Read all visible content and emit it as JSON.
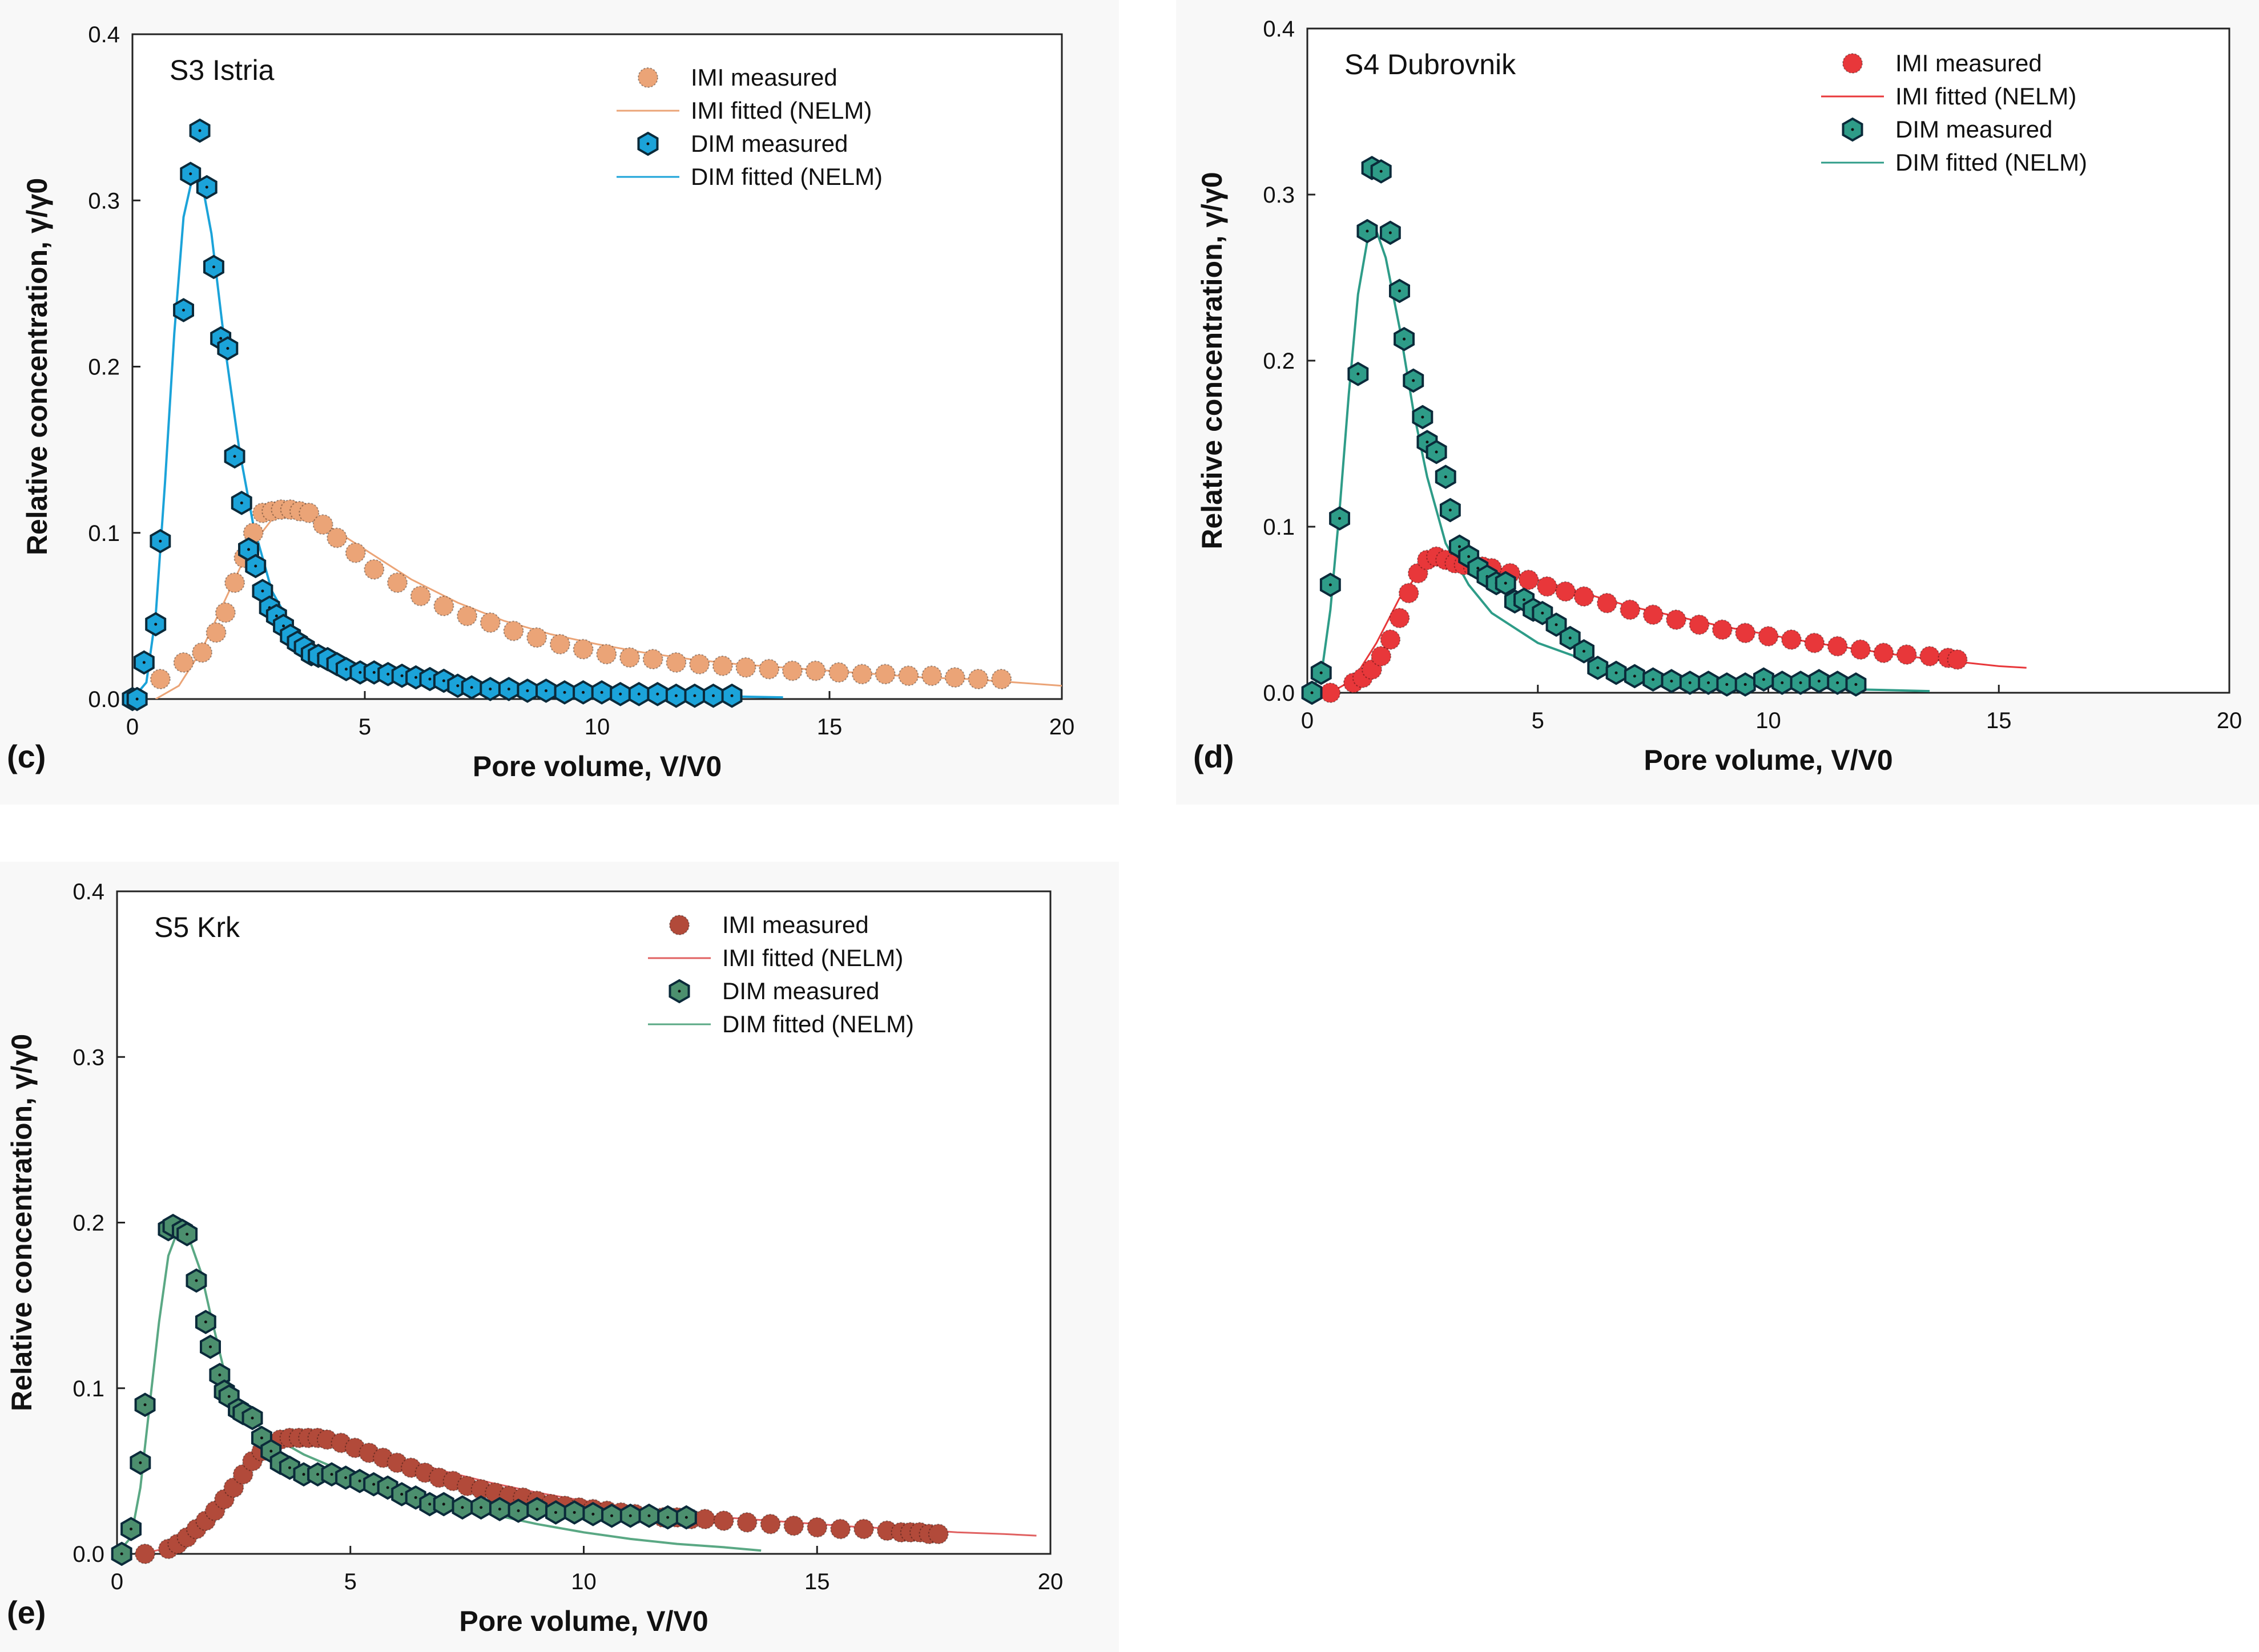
{
  "figure": {
    "colors": {
      "imi_c": "#EBA477",
      "dim_c": "#1BA3D9",
      "imi_d": "#E8373A",
      "dim_d": "#2E9C88",
      "imi_e": "#B24A3A",
      "dim_e": "#4C8F6E",
      "fit_imi_e": "#E06060",
      "fit_dim_e": "#5AA884"
    }
  },
  "chart_data": [
    {
      "id": "c",
      "type": "line",
      "panel_label": "(c)",
      "title": "S3 Istria",
      "xlabel": "Pore volume, V/V0",
      "ylabel": "Relative concentration, γ/γ0",
      "xlim": [
        0,
        20
      ],
      "ylim": [
        0,
        0.4
      ],
      "xticks": [
        0,
        5,
        10,
        15,
        20
      ],
      "yticks": [
        "0.0",
        "0.1",
        "0.2",
        "0.3",
        "0.4"
      ],
      "legend_position": "top-right",
      "legend": [
        "IMI measured",
        "IMI fitted (NELM)",
        "DIM measured",
        "DIM fitted (NELM)"
      ],
      "series": [
        {
          "name": "IMI measured",
          "kind": "scatter",
          "marker": "circle",
          "x": [
            0.6,
            1.1,
            1.5,
            1.8,
            2.0,
            2.2,
            2.4,
            2.6,
            2.8,
            3.0,
            3.2,
            3.4,
            3.6,
            3.8,
            4.1,
            4.4,
            4.8,
            5.2,
            5.7,
            6.2,
            6.7,
            7.2,
            7.7,
            8.2,
            8.7,
            9.2,
            9.7,
            10.2,
            10.7,
            11.2,
            11.7,
            12.2,
            12.7,
            13.2,
            13.7,
            14.2,
            14.7,
            15.2,
            15.7,
            16.2,
            16.7,
            17.2,
            17.7,
            18.2,
            18.7
          ],
          "y": [
            0.012,
            0.022,
            0.028,
            0.04,
            0.052,
            0.07,
            0.085,
            0.1,
            0.112,
            0.113,
            0.114,
            0.114,
            0.113,
            0.112,
            0.105,
            0.097,
            0.088,
            0.078,
            0.07,
            0.062,
            0.056,
            0.05,
            0.046,
            0.041,
            0.037,
            0.033,
            0.03,
            0.027,
            0.025,
            0.024,
            0.022,
            0.021,
            0.02,
            0.019,
            0.018,
            0.017,
            0.017,
            0.016,
            0.015,
            0.015,
            0.014,
            0.014,
            0.013,
            0.012,
            0.012
          ]
        },
        {
          "name": "IMI fitted (NELM)",
          "kind": "line",
          "x": [
            0.5,
            1.0,
            1.5,
            2.0,
            2.5,
            3.0,
            3.5,
            4.0,
            5.0,
            6.0,
            7.0,
            8.0,
            9.0,
            10.0,
            11.0,
            12.0,
            13.0,
            14.0,
            15.0,
            16.0,
            17.0,
            18.0,
            19.0,
            20.0
          ],
          "y": [
            0.0,
            0.008,
            0.03,
            0.06,
            0.09,
            0.108,
            0.112,
            0.108,
            0.09,
            0.072,
            0.058,
            0.047,
            0.039,
            0.033,
            0.028,
            0.024,
            0.021,
            0.019,
            0.017,
            0.015,
            0.013,
            0.012,
            0.01,
            0.008
          ]
        },
        {
          "name": "DIM measured",
          "kind": "scatter",
          "marker": "hexagon",
          "x": [
            0.0,
            0.1,
            0.25,
            0.5,
            0.6,
            1.1,
            1.25,
            1.45,
            1.6,
            1.75,
            1.9,
            2.05,
            2.2,
            2.35,
            2.5,
            2.65,
            2.8,
            2.95,
            3.1,
            3.25,
            3.4,
            3.55,
            3.7,
            3.85,
            4.0,
            4.2,
            4.4,
            4.6,
            4.9,
            5.2,
            5.5,
            5.8,
            6.1,
            6.4,
            6.7,
            7.0,
            7.3,
            7.7,
            8.1,
            8.5,
            8.9,
            9.3,
            9.7,
            10.1,
            10.5,
            10.9,
            11.3,
            11.7,
            12.1,
            12.5,
            12.9
          ],
          "y": [
            0.0,
            0.0,
            0.022,
            0.045,
            0.095,
            0.234,
            0.316,
            0.342,
            0.308,
            0.26,
            0.217,
            0.211,
            0.146,
            0.118,
            0.09,
            0.08,
            0.065,
            0.055,
            0.05,
            0.044,
            0.038,
            0.034,
            0.031,
            0.027,
            0.026,
            0.024,
            0.021,
            0.018,
            0.016,
            0.016,
            0.015,
            0.014,
            0.013,
            0.012,
            0.011,
            0.008,
            0.007,
            0.006,
            0.006,
            0.005,
            0.005,
            0.004,
            0.004,
            0.004,
            0.003,
            0.003,
            0.003,
            0.002,
            0.002,
            0.002,
            0.002
          ]
        },
        {
          "name": "DIM fitted (NELM)",
          "kind": "line",
          "x": [
            0.0,
            0.3,
            0.5,
            0.7,
            0.9,
            1.1,
            1.3,
            1.5,
            1.7,
            2.0,
            2.3,
            2.6,
            3.0,
            3.5,
            4.0,
            5.0,
            6.0,
            7.0,
            8.0,
            10.0,
            12.0,
            14.0
          ],
          "y": [
            0.0,
            0.01,
            0.05,
            0.13,
            0.22,
            0.29,
            0.315,
            0.31,
            0.28,
            0.21,
            0.15,
            0.105,
            0.065,
            0.04,
            0.027,
            0.016,
            0.011,
            0.008,
            0.006,
            0.004,
            0.002,
            0.001
          ]
        }
      ]
    },
    {
      "id": "d",
      "type": "line",
      "panel_label": "(d)",
      "title": "S4 Dubrovnik",
      "xlabel": "Pore volume, V/V0",
      "ylabel": "Relative concentration, γ/γ0",
      "xlim": [
        0,
        20
      ],
      "ylim": [
        0,
        0.4
      ],
      "xticks": [
        0,
        5,
        10,
        15,
        20
      ],
      "yticks": [
        "0.0",
        "0.1",
        "0.2",
        "0.3",
        "0.4"
      ],
      "legend_position": "top-right",
      "legend": [
        "IMI measured",
        "IMI fitted (NELM)",
        "DIM measured",
        "DIM fitted (NELM)"
      ],
      "series": [
        {
          "name": "IMI measured",
          "kind": "scatter",
          "marker": "circle",
          "x": [
            0.5,
            1.0,
            1.2,
            1.4,
            1.6,
            1.8,
            2.0,
            2.2,
            2.4,
            2.6,
            2.8,
            3.0,
            3.2,
            3.4,
            3.6,
            3.8,
            4.0,
            4.4,
            4.8,
            5.2,
            5.6,
            6.0,
            6.5,
            7.0,
            7.5,
            8.0,
            8.5,
            9.0,
            9.5,
            10.0,
            10.5,
            11.0,
            11.5,
            12.0,
            12.5,
            13.0,
            13.5,
            13.9,
            14.1
          ],
          "y": [
            0.0,
            0.006,
            0.009,
            0.014,
            0.022,
            0.032,
            0.045,
            0.06,
            0.072,
            0.08,
            0.082,
            0.08,
            0.078,
            0.077,
            0.076,
            0.076,
            0.075,
            0.072,
            0.068,
            0.064,
            0.061,
            0.058,
            0.054,
            0.05,
            0.047,
            0.044,
            0.041,
            0.038,
            0.036,
            0.034,
            0.032,
            0.03,
            0.028,
            0.026,
            0.024,
            0.023,
            0.022,
            0.021,
            0.02
          ]
        },
        {
          "name": "IMI fitted (NELM)",
          "kind": "line",
          "x": [
            0.5,
            1.0,
            1.5,
            2.0,
            2.5,
            3.0,
            3.5,
            4.0,
            5.0,
            6.0,
            7.0,
            8.0,
            9.0,
            10.0,
            11.0,
            12.0,
            13.0,
            14.0,
            15.0,
            15.6
          ],
          "y": [
            0.0,
            0.008,
            0.03,
            0.057,
            0.075,
            0.082,
            0.08,
            0.076,
            0.068,
            0.06,
            0.052,
            0.046,
            0.04,
            0.035,
            0.03,
            0.026,
            0.022,
            0.019,
            0.016,
            0.015
          ]
        },
        {
          "name": "DIM measured",
          "kind": "scatter",
          "marker": "hexagon",
          "x": [
            0.1,
            0.3,
            0.5,
            0.7,
            1.1,
            1.3,
            1.4,
            1.6,
            1.8,
            2.0,
            2.1,
            2.3,
            2.5,
            2.6,
            2.8,
            3.0,
            3.1,
            3.3,
            3.5,
            3.7,
            3.9,
            4.1,
            4.3,
            4.5,
            4.7,
            4.9,
            5.1,
            5.4,
            5.7,
            6.0,
            6.3,
            6.7,
            7.1,
            7.5,
            7.9,
            8.3,
            8.7,
            9.1,
            9.5,
            9.9,
            10.3,
            10.7,
            11.1,
            11.5,
            11.9
          ],
          "y": [
            0.0,
            0.012,
            0.065,
            0.105,
            0.192,
            0.278,
            0.316,
            0.314,
            0.277,
            0.242,
            0.213,
            0.188,
            0.166,
            0.151,
            0.145,
            0.13,
            0.11,
            0.088,
            0.082,
            0.075,
            0.07,
            0.066,
            0.066,
            0.055,
            0.056,
            0.05,
            0.048,
            0.041,
            0.033,
            0.025,
            0.015,
            0.012,
            0.01,
            0.008,
            0.007,
            0.006,
            0.006,
            0.005,
            0.005,
            0.008,
            0.006,
            0.006,
            0.007,
            0.006,
            0.005
          ]
        },
        {
          "name": "DIM fitted (NELM)",
          "kind": "line",
          "x": [
            0.0,
            0.3,
            0.5,
            0.7,
            0.9,
            1.1,
            1.3,
            1.5,
            1.7,
            2.0,
            2.3,
            2.6,
            3.0,
            3.5,
            4.0,
            5.0,
            6.0,
            7.0,
            8.0,
            10.0,
            12.0,
            13.5
          ],
          "y": [
            0.0,
            0.01,
            0.05,
            0.11,
            0.18,
            0.24,
            0.272,
            0.278,
            0.262,
            0.22,
            0.17,
            0.13,
            0.09,
            0.065,
            0.048,
            0.03,
            0.02,
            0.013,
            0.009,
            0.004,
            0.002,
            0.001
          ]
        }
      ]
    },
    {
      "id": "e",
      "type": "line",
      "panel_label": "(e)",
      "title": "S5 Krk",
      "xlabel": "Pore volume, V/V0",
      "ylabel": "Relative concentration, γ/γ0",
      "xlim": [
        0,
        20
      ],
      "ylim": [
        0,
        0.4
      ],
      "xticks": [
        0,
        5,
        10,
        15,
        20
      ],
      "yticks": [
        "0.0",
        "0.1",
        "0.2",
        "0.3",
        "0.4"
      ],
      "legend_position": "top-right",
      "legend": [
        "IMI measured",
        "IMI fitted (NELM)",
        "DIM measured",
        "DIM fitted (NELM)"
      ],
      "series": [
        {
          "name": "IMI measured",
          "kind": "scatter",
          "marker": "circle",
          "x": [
            0.6,
            1.1,
            1.3,
            1.5,
            1.7,
            1.9,
            2.1,
            2.3,
            2.5,
            2.7,
            2.9,
            3.1,
            3.3,
            3.5,
            3.7,
            3.9,
            4.1,
            4.3,
            4.5,
            4.8,
            5.1,
            5.4,
            5.7,
            6.0,
            6.3,
            6.6,
            6.9,
            7.2,
            7.5,
            7.8,
            8.1,
            8.4,
            8.7,
            9.0,
            9.3,
            9.6,
            9.9,
            10.2,
            10.5,
            10.8,
            11.1,
            11.4,
            11.7,
            12.0,
            12.3,
            12.6,
            13.0,
            13.5,
            14.0,
            14.5,
            15.0,
            15.5,
            16.0,
            16.5,
            16.8,
            17.0,
            17.2,
            17.4,
            17.6
          ],
          "y": [
            0.0,
            0.003,
            0.006,
            0.01,
            0.015,
            0.02,
            0.026,
            0.033,
            0.04,
            0.048,
            0.056,
            0.062,
            0.066,
            0.069,
            0.07,
            0.07,
            0.07,
            0.07,
            0.069,
            0.067,
            0.064,
            0.061,
            0.058,
            0.055,
            0.052,
            0.049,
            0.046,
            0.044,
            0.041,
            0.039,
            0.037,
            0.035,
            0.034,
            0.032,
            0.03,
            0.029,
            0.028,
            0.027,
            0.026,
            0.025,
            0.024,
            0.023,
            0.022,
            0.022,
            0.021,
            0.021,
            0.02,
            0.019,
            0.018,
            0.017,
            0.016,
            0.015,
            0.015,
            0.014,
            0.013,
            0.013,
            0.013,
            0.012,
            0.012
          ]
        },
        {
          "name": "IMI fitted (NELM)",
          "kind": "line",
          "x": [
            0.5,
            1.0,
            1.5,
            2.0,
            2.5,
            3.0,
            3.5,
            4.0,
            4.5,
            5.0,
            6.0,
            7.0,
            8.0,
            9.0,
            10.0,
            11.0,
            12.0,
            13.0,
            14.0,
            15.0,
            16.0,
            17.0,
            18.0,
            19.0,
            19.7
          ],
          "y": [
            0.0,
            0.003,
            0.011,
            0.025,
            0.042,
            0.057,
            0.066,
            0.07,
            0.069,
            0.066,
            0.058,
            0.05,
            0.043,
            0.037,
            0.032,
            0.028,
            0.025,
            0.022,
            0.02,
            0.018,
            0.016,
            0.015,
            0.013,
            0.012,
            0.011
          ]
        },
        {
          "name": "DIM measured",
          "kind": "scatter",
          "marker": "hexagon",
          "x": [
            0.1,
            0.3,
            0.5,
            0.6,
            1.1,
            1.2,
            1.4,
            1.5,
            1.7,
            1.9,
            2.0,
            2.2,
            2.3,
            2.4,
            2.6,
            2.7,
            2.9,
            3.1,
            3.3,
            3.5,
            3.7,
            4.0,
            4.3,
            4.6,
            4.9,
            5.2,
            5.5,
            5.8,
            6.1,
            6.4,
            6.7,
            7.0,
            7.4,
            7.8,
            8.2,
            8.6,
            9.0,
            9.4,
            9.8,
            10.2,
            10.6,
            11.0,
            11.4,
            11.8,
            12.2
          ],
          "y": [
            0.0,
            0.015,
            0.055,
            0.09,
            0.196,
            0.198,
            0.195,
            0.193,
            0.165,
            0.14,
            0.125,
            0.108,
            0.098,
            0.095,
            0.087,
            0.085,
            0.082,
            0.07,
            0.062,
            0.055,
            0.052,
            0.048,
            0.048,
            0.048,
            0.046,
            0.044,
            0.042,
            0.04,
            0.036,
            0.034,
            0.03,
            0.03,
            0.028,
            0.028,
            0.027,
            0.026,
            0.027,
            0.025,
            0.025,
            0.024,
            0.023,
            0.023,
            0.023,
            0.022,
            0.022
          ]
        },
        {
          "name": "DIM fitted (NELM)",
          "kind": "line",
          "x": [
            0.0,
            0.3,
            0.5,
            0.7,
            0.9,
            1.1,
            1.3,
            1.5,
            1.8,
            2.0,
            2.3,
            2.6,
            3.0,
            3.5,
            4.0,
            5.0,
            6.0,
            7.0,
            8.0,
            9.0,
            10.0,
            11.0,
            12.0,
            13.0,
            13.8
          ],
          "y": [
            0.0,
            0.01,
            0.04,
            0.09,
            0.14,
            0.18,
            0.195,
            0.194,
            0.17,
            0.145,
            0.11,
            0.09,
            0.078,
            0.068,
            0.06,
            0.048,
            0.039,
            0.031,
            0.024,
            0.018,
            0.013,
            0.009,
            0.006,
            0.004,
            0.002
          ]
        }
      ]
    }
  ]
}
